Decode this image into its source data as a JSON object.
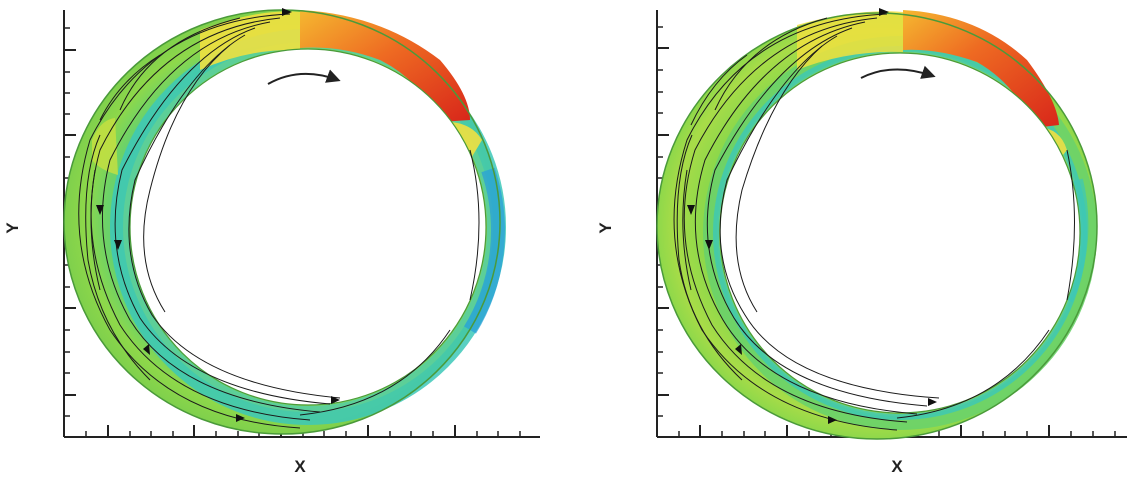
{
  "panels": [
    {
      "x_label": "X",
      "y_label": "Y"
    },
    {
      "x_label": "X",
      "y_label": "Y"
    }
  ],
  "colormap": [
    "#2aa0d8",
    "#3cc8b8",
    "#6ad26a",
    "#8ed84a",
    "#c8e040",
    "#f0e040",
    "#f5b830",
    "#ee6a22",
    "#d8261a"
  ],
  "features": [
    "streamlines",
    "rotation-arrow",
    "contour-fill"
  ]
}
